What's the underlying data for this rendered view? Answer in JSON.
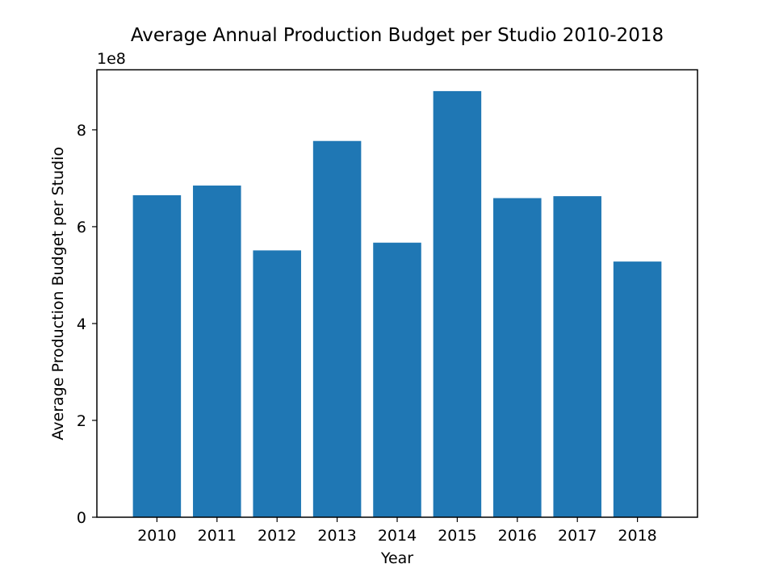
{
  "chart_data": {
    "type": "bar",
    "title": "Average Annual Production Budget per Studio 2010-2018",
    "xlabel": "Year",
    "ylabel": "Average Production Budget per Studio",
    "y_offset_label": "1e8",
    "y_scale_factor": 100000000,
    "categories": [
      "2010",
      "2011",
      "2012",
      "2013",
      "2014",
      "2015",
      "2016",
      "2017",
      "2018"
    ],
    "values": [
      665000000,
      685000000,
      551000000,
      777000000,
      567000000,
      880000000,
      659000000,
      663000000,
      528000000
    ],
    "ylim": [
      0,
      924000000
    ],
    "yticks": [
      0,
      2,
      4,
      6,
      8
    ],
    "bar_color": "#1f77b4",
    "grid": false,
    "legend": "none"
  }
}
